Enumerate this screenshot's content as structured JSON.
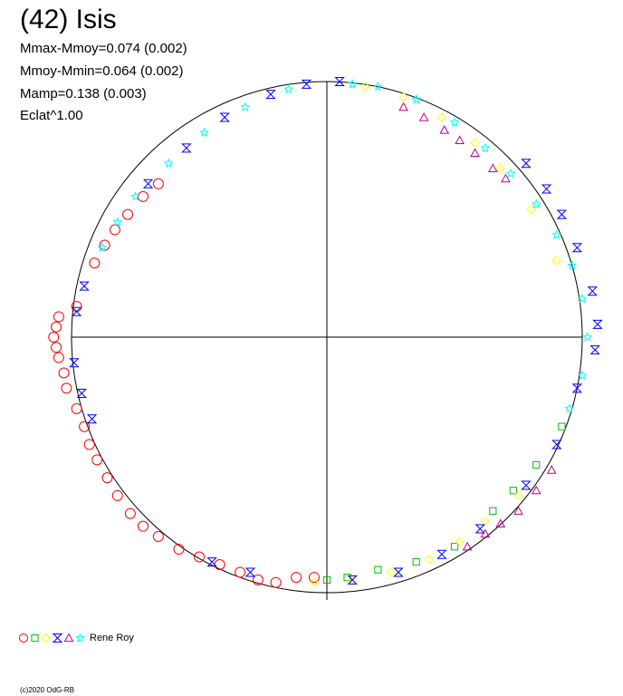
{
  "chart_data": {
    "type": "scatter",
    "title": "(42) Isis",
    "subtitle_lines": [
      "Mmax-Mmoy=0.074 (0.002)",
      "Mmoy-Mmin=0.064 (0.002)",
      "Mamp=0.138 (0.003)",
      "Eclat^1.00"
    ],
    "legend": {
      "label": "Rene Roy",
      "placement": "bottom-left",
      "markers": [
        {
          "shape": "circle",
          "color": "#ff0000"
        },
        {
          "shape": "square",
          "color": "#00c000"
        },
        {
          "shape": "diamond",
          "color": "#ffff00"
        },
        {
          "shape": "hourglass",
          "color": "#0000ff"
        },
        {
          "shape": "triangle",
          "color": "#c00080"
        },
        {
          "shape": "star",
          "color": "#00ffff"
        }
      ]
    },
    "axes": {
      "xlim": [
        -1,
        1
      ],
      "ylim": [
        -1,
        1
      ],
      "crosshair": true
    },
    "reference_circle_radius": 1.0,
    "series": [
      {
        "color": "#ff0000",
        "shape": "circle",
        "points": [
          [
            -0.66,
            0.6
          ],
          [
            -0.72,
            0.55
          ],
          [
            -0.78,
            0.48
          ],
          [
            -0.83,
            0.42
          ],
          [
            -0.87,
            0.36
          ],
          [
            -0.91,
            0.29
          ],
          [
            -0.98,
            0.12
          ],
          [
            -1.05,
            0.08
          ],
          [
            -1.06,
            0.04
          ],
          [
            -1.07,
            0.0
          ],
          [
            -1.06,
            -0.04
          ],
          [
            -1.05,
            -0.08
          ],
          [
            -1.03,
            -0.14
          ],
          [
            -1.02,
            -0.2
          ],
          [
            -0.98,
            -0.28
          ],
          [
            -0.95,
            -0.35
          ],
          [
            -0.93,
            -0.42
          ],
          [
            -0.9,
            -0.48
          ],
          [
            -0.86,
            -0.55
          ],
          [
            -0.82,
            -0.62
          ],
          [
            -0.77,
            -0.69
          ],
          [
            -0.72,
            -0.74
          ],
          [
            -0.66,
            -0.78
          ],
          [
            -0.58,
            -0.83
          ],
          [
            -0.5,
            -0.86
          ],
          [
            -0.42,
            -0.89
          ],
          [
            -0.34,
            -0.92
          ],
          [
            -0.27,
            -0.95
          ],
          [
            -0.2,
            -0.96
          ],
          [
            -0.12,
            -0.94
          ],
          [
            -0.05,
            -0.94
          ]
        ]
      },
      {
        "color": "#00c000",
        "shape": "square",
        "points": [
          [
            0.0,
            -0.95
          ],
          [
            0.08,
            -0.94
          ],
          [
            0.2,
            -0.91
          ],
          [
            0.35,
            -0.88
          ],
          [
            0.5,
            -0.82
          ],
          [
            0.65,
            -0.68
          ],
          [
            0.73,
            -0.6
          ],
          [
            0.82,
            -0.5
          ],
          [
            0.92,
            -0.35
          ]
        ]
      },
      {
        "color": "#ffff00",
        "shape": "diamond",
        "points": [
          [
            0.15,
            0.98
          ],
          [
            0.3,
            0.94
          ],
          [
            0.45,
            0.86
          ],
          [
            0.58,
            0.76
          ],
          [
            0.68,
            0.66
          ],
          [
            0.8,
            0.5
          ],
          [
            0.9,
            0.3
          ],
          [
            -0.05,
            -0.96
          ],
          [
            0.1,
            -0.95
          ],
          [
            0.25,
            -0.92
          ],
          [
            0.4,
            -0.87
          ],
          [
            0.52,
            -0.8
          ],
          [
            0.62,
            -0.72
          ],
          [
            0.75,
            -0.62
          ]
        ]
      },
      {
        "color": "#0000ff",
        "shape": "hourglass",
        "points": [
          [
            -0.95,
            0.2
          ],
          [
            -0.98,
            0.1
          ],
          [
            -0.99,
            -0.1
          ],
          [
            -0.96,
            -0.22
          ],
          [
            -0.92,
            -0.32
          ],
          [
            -0.7,
            0.6
          ],
          [
            -0.55,
            0.74
          ],
          [
            -0.4,
            0.86
          ],
          [
            -0.22,
            0.95
          ],
          [
            -0.08,
            0.99
          ],
          [
            0.05,
            1.0
          ],
          [
            0.1,
            -0.95
          ],
          [
            0.28,
            -0.92
          ],
          [
            0.45,
            -0.85
          ],
          [
            0.6,
            -0.75
          ],
          [
            0.78,
            -0.58
          ],
          [
            0.9,
            -0.42
          ],
          [
            0.98,
            -0.2
          ],
          [
            1.05,
            -0.05
          ],
          [
            1.06,
            0.05
          ],
          [
            1.04,
            0.18
          ],
          [
            0.98,
            0.35
          ],
          [
            0.92,
            0.48
          ],
          [
            0.86,
            0.58
          ],
          [
            0.78,
            0.68
          ],
          [
            -0.3,
            -0.92
          ],
          [
            -0.45,
            -0.88
          ]
        ]
      },
      {
        "color": "#c00080",
        "shape": "triangle",
        "points": [
          [
            0.3,
            0.9
          ],
          [
            0.38,
            0.86
          ],
          [
            0.46,
            0.81
          ],
          [
            0.52,
            0.77
          ],
          [
            0.58,
            0.72
          ],
          [
            0.65,
            0.66
          ],
          [
            0.7,
            0.62
          ],
          [
            0.55,
            -0.82
          ],
          [
            0.62,
            -0.77
          ],
          [
            0.68,
            -0.73
          ],
          [
            0.75,
            -0.68
          ],
          [
            0.82,
            -0.6
          ],
          [
            0.88,
            -0.52
          ]
        ]
      },
      {
        "color": "#00ffff",
        "shape": "star",
        "points": [
          [
            -0.88,
            0.35
          ],
          [
            -0.82,
            0.45
          ],
          [
            -0.75,
            0.55
          ],
          [
            -0.62,
            0.68
          ],
          [
            -0.48,
            0.8
          ],
          [
            -0.32,
            0.9
          ],
          [
            -0.15,
            0.97
          ],
          [
            0.1,
            0.99
          ],
          [
            0.2,
            0.98
          ],
          [
            0.35,
            0.93
          ],
          [
            0.5,
            0.84
          ],
          [
            0.62,
            0.74
          ],
          [
            0.72,
            0.64
          ],
          [
            0.82,
            0.52
          ],
          [
            0.9,
            0.4
          ],
          [
            0.96,
            0.28
          ],
          [
            1.0,
            0.15
          ],
          [
            1.02,
            0.0
          ],
          [
            1.0,
            -0.15
          ],
          [
            0.95,
            -0.28
          ]
        ]
      }
    ]
  },
  "copyright": "(c)2020 OdG-RB"
}
